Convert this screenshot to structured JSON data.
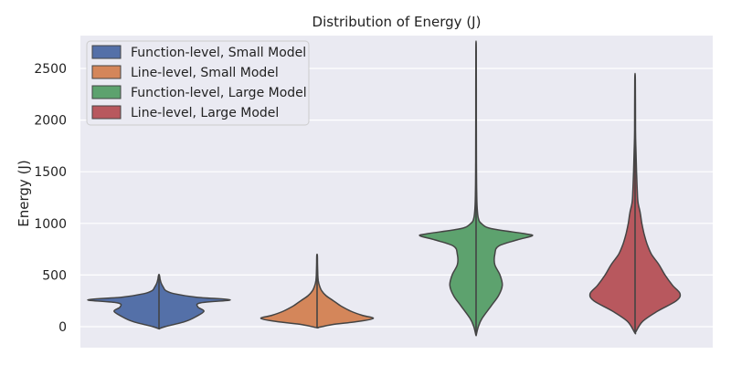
{
  "chart_data": {
    "type": "violin",
    "title": "Distribution of Energy (J)",
    "ylabel": "Energy (J)",
    "xlabel": "",
    "ylim": [
      -200,
      2800
    ],
    "yticks": [
      0,
      500,
      1000,
      1500,
      2000,
      2500
    ],
    "grid": true,
    "legend_position": "top-left",
    "series": [
      {
        "name": "Function-level, Small Model",
        "color": "#5470a8",
        "min": -20,
        "max": 500,
        "profile": [
          [
            -20,
            0.002
          ],
          [
            0,
            0.08
          ],
          [
            50,
            0.35
          ],
          [
            100,
            0.5
          ],
          [
            150,
            0.6
          ],
          [
            190,
            0.52
          ],
          [
            230,
            0.55
          ],
          [
            260,
            0.95
          ],
          [
            285,
            0.5
          ],
          [
            320,
            0.2
          ],
          [
            350,
            0.09
          ],
          [
            380,
            0.06
          ],
          [
            420,
            0.03
          ],
          [
            460,
            0.015
          ],
          [
            500,
            0.005
          ]
        ]
      },
      {
        "name": "Line-level, Small Model",
        "color": "#d4865a",
        "min": -10,
        "max": 690,
        "profile": [
          [
            -10,
            0.005
          ],
          [
            20,
            0.2
          ],
          [
            50,
            0.55
          ],
          [
            80,
            0.75
          ],
          [
            110,
            0.6
          ],
          [
            150,
            0.45
          ],
          [
            200,
            0.32
          ],
          [
            250,
            0.22
          ],
          [
            300,
            0.12
          ],
          [
            350,
            0.06
          ],
          [
            400,
            0.03
          ],
          [
            450,
            0.015
          ],
          [
            500,
            0.01
          ],
          [
            600,
            0.006
          ],
          [
            690,
            0.004
          ]
        ]
      },
      {
        "name": "Function-level, Large Model",
        "color": "#5da26e",
        "min": -80,
        "max": 2680,
        "profile": [
          [
            -80,
            0.003
          ],
          [
            0,
            0.03
          ],
          [
            80,
            0.08
          ],
          [
            200,
            0.2
          ],
          [
            300,
            0.3
          ],
          [
            400,
            0.35
          ],
          [
            500,
            0.32
          ],
          [
            600,
            0.25
          ],
          [
            700,
            0.25
          ],
          [
            780,
            0.3
          ],
          [
            840,
            0.55
          ],
          [
            880,
            0.75
          ],
          [
            900,
            0.65
          ],
          [
            950,
            0.2
          ],
          [
            1000,
            0.07
          ],
          [
            1050,
            0.03
          ],
          [
            1150,
            0.015
          ],
          [
            1300,
            0.008
          ],
          [
            1600,
            0.005
          ],
          [
            2000,
            0.004
          ],
          [
            2680,
            0.003
          ]
        ]
      },
      {
        "name": "Line-level, Large Model",
        "color": "#b8585e",
        "min": -60,
        "max": 2390,
        "profile": [
          [
            -60,
            0.003
          ],
          [
            50,
            0.1
          ],
          [
            150,
            0.3
          ],
          [
            250,
            0.55
          ],
          [
            320,
            0.6
          ],
          [
            400,
            0.5
          ],
          [
            500,
            0.4
          ],
          [
            600,
            0.32
          ],
          [
            700,
            0.22
          ],
          [
            800,
            0.16
          ],
          [
            900,
            0.12
          ],
          [
            1000,
            0.09
          ],
          [
            1100,
            0.07
          ],
          [
            1200,
            0.04
          ],
          [
            1300,
            0.03
          ],
          [
            1500,
            0.02
          ],
          [
            1700,
            0.012
          ],
          [
            1900,
            0.006
          ],
          [
            2390,
            0.004
          ]
        ]
      }
    ]
  }
}
